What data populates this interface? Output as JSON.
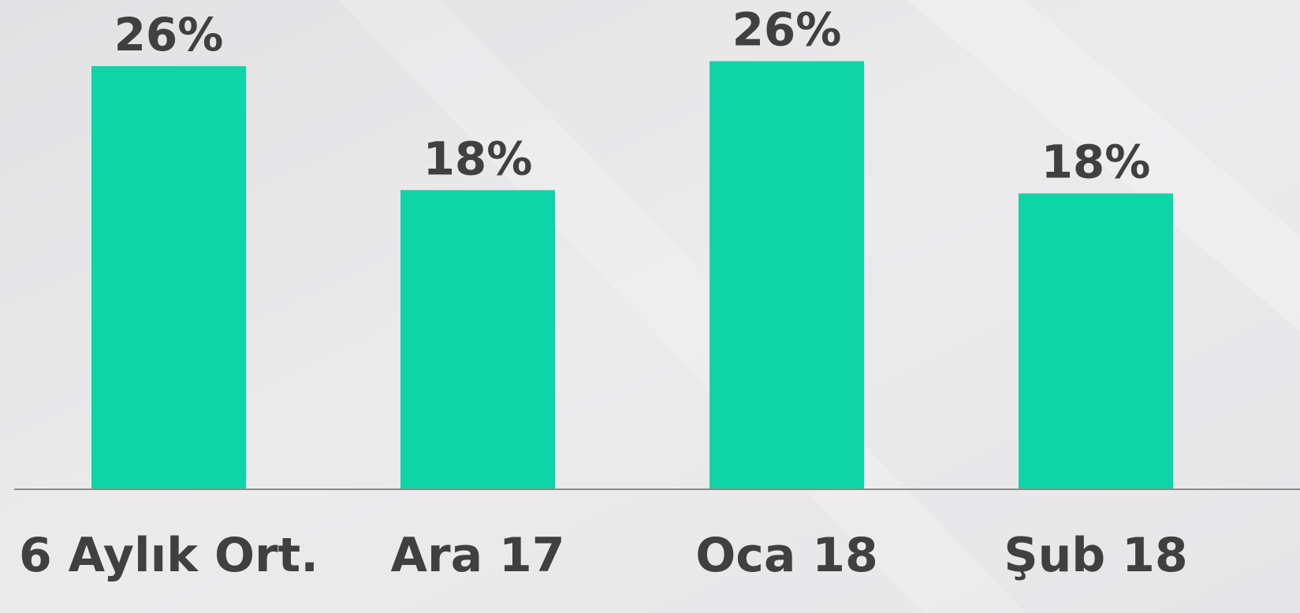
{
  "chart_data": {
    "type": "bar",
    "categories": [
      "6 Aylık Ort.",
      "Ara 17",
      "Oca 18",
      "Şub 18"
    ],
    "values": [
      25.6,
      18.1,
      25.9,
      17.9
    ],
    "value_labels": [
      "26%",
      "18%",
      "26%",
      "18%"
    ],
    "color": "#0fd4a6",
    "ylim": [
      0,
      29.6
    ]
  }
}
